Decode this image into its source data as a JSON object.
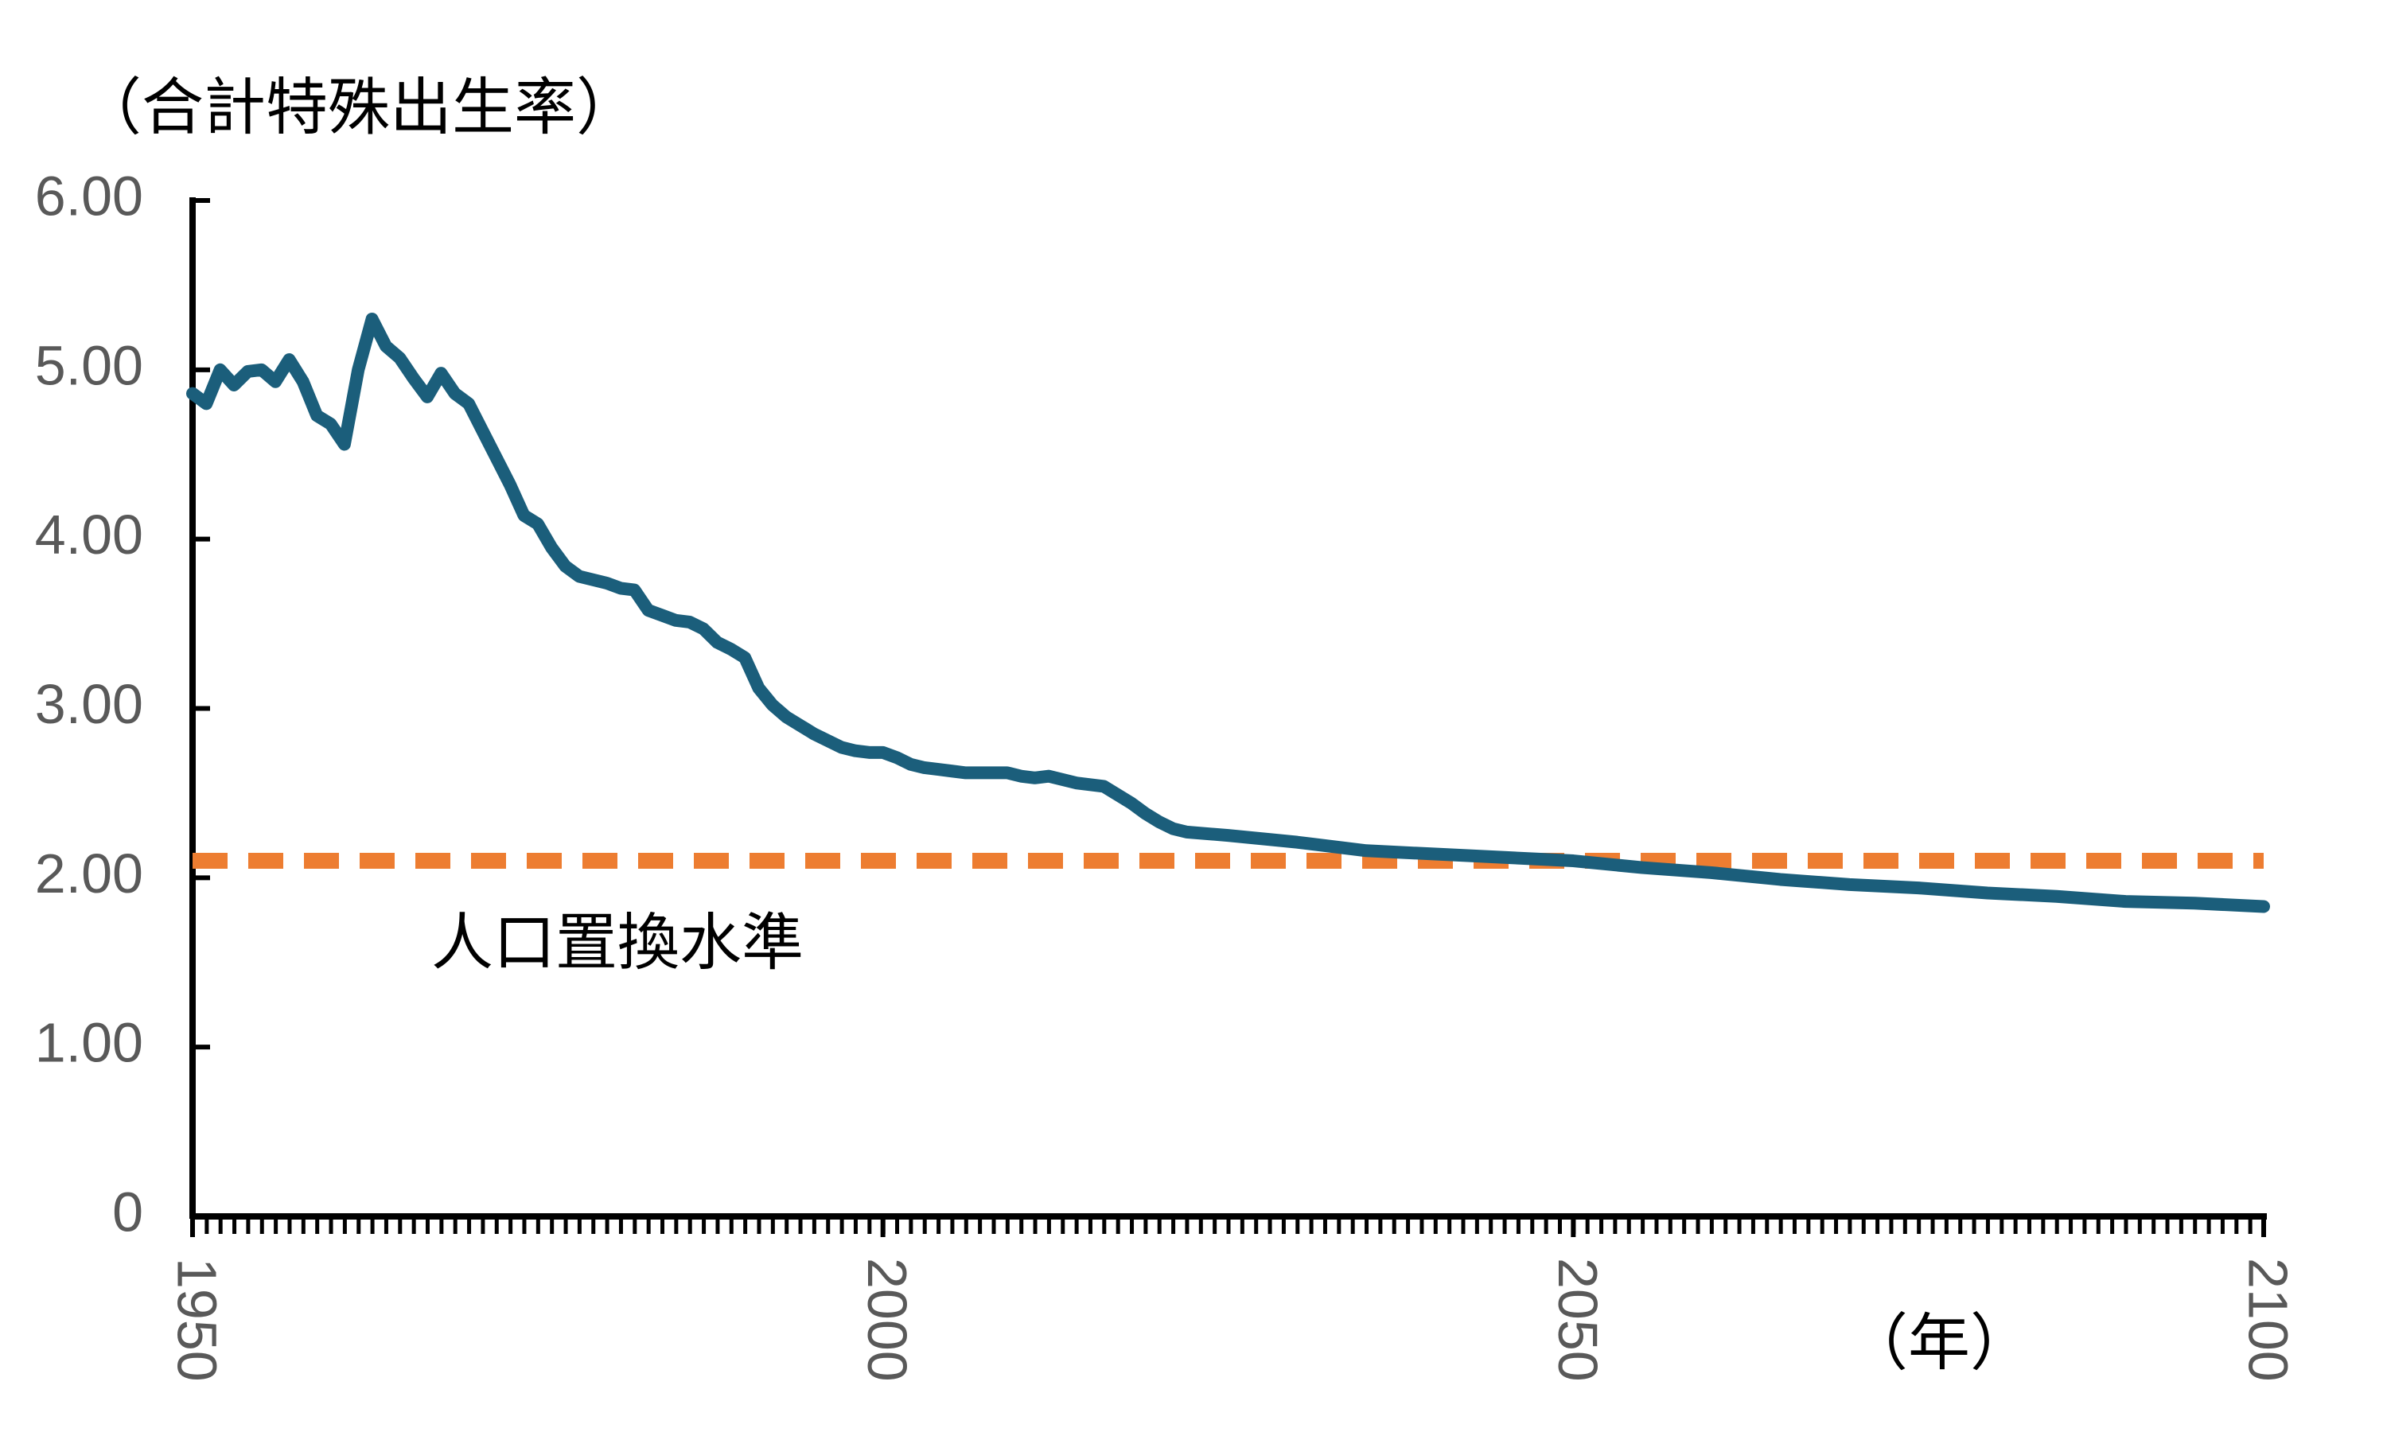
{
  "chart_data": {
    "type": "line",
    "y_axis_label": "（合計特殊出生率）",
    "x_axis_label": "（年）",
    "x": [
      1950,
      1951,
      1952,
      1953,
      1954,
      1955,
      1956,
      1957,
      1958,
      1959,
      1960,
      1961,
      1962,
      1963,
      1964,
      1965,
      1966,
      1967,
      1968,
      1969,
      1970,
      1971,
      1972,
      1973,
      1974,
      1975,
      1976,
      1977,
      1978,
      1979,
      1980,
      1981,
      1982,
      1983,
      1984,
      1985,
      1986,
      1987,
      1988,
      1989,
      1990,
      1991,
      1992,
      1993,
      1994,
      1995,
      1996,
      1997,
      1998,
      1999,
      2000,
      2001,
      2002,
      2003,
      2004,
      2005,
      2006,
      2007,
      2008,
      2009,
      2010,
      2011,
      2012,
      2013,
      2014,
      2015,
      2016,
      2017,
      2018,
      2019,
      2020,
      2021,
      2022,
      2025,
      2030,
      2035,
      2040,
      2045,
      2050,
      2055,
      2060,
      2065,
      2070,
      2075,
      2080,
      2085,
      2090,
      2095,
      2100
    ],
    "series": [
      {
        "color": "#1b5e7b",
        "values": [
          4.86,
          4.8,
          5.0,
          4.91,
          4.99,
          5.0,
          4.93,
          5.06,
          4.93,
          4.73,
          4.68,
          4.56,
          5.0,
          5.3,
          5.14,
          5.07,
          4.95,
          4.84,
          4.98,
          4.86,
          4.8,
          4.64,
          4.48,
          4.32,
          4.14,
          4.09,
          3.95,
          3.84,
          3.78,
          3.76,
          3.74,
          3.71,
          3.7,
          3.58,
          3.55,
          3.52,
          3.51,
          3.47,
          3.39,
          3.35,
          3.3,
          3.12,
          3.02,
          2.95,
          2.9,
          2.85,
          2.81,
          2.77,
          2.75,
          2.74,
          2.74,
          2.71,
          2.67,
          2.65,
          2.64,
          2.63,
          2.62,
          2.62,
          2.62,
          2.62,
          2.6,
          2.59,
          2.6,
          2.58,
          2.56,
          2.55,
          2.54,
          2.49,
          2.44,
          2.38,
          2.33,
          2.29,
          2.27,
          2.25,
          2.21,
          2.16,
          2.14,
          2.12,
          2.1,
          2.06,
          2.03,
          1.99,
          1.96,
          1.94,
          1.91,
          1.89,
          1.86,
          1.85,
          1.83
        ]
      }
    ],
    "reference_line": {
      "value": 2.1,
      "label": "人口置換水準",
      "color": "#ed7d31"
    },
    "xlim": [
      1950,
      2100
    ],
    "xticks": [
      1950,
      2000,
      2050,
      2100
    ],
    "ylim": [
      0,
      6
    ],
    "yticks": [
      0,
      {
        "value": 1,
        "label": "1.00"
      },
      {
        "value": 2,
        "label": "2.00"
      },
      {
        "value": 3,
        "label": "3.00"
      },
      {
        "value": 4,
        "label": "4.00"
      },
      {
        "value": 5,
        "label": "5.00"
      },
      {
        "value": 6,
        "label": "6.00"
      }
    ]
  }
}
